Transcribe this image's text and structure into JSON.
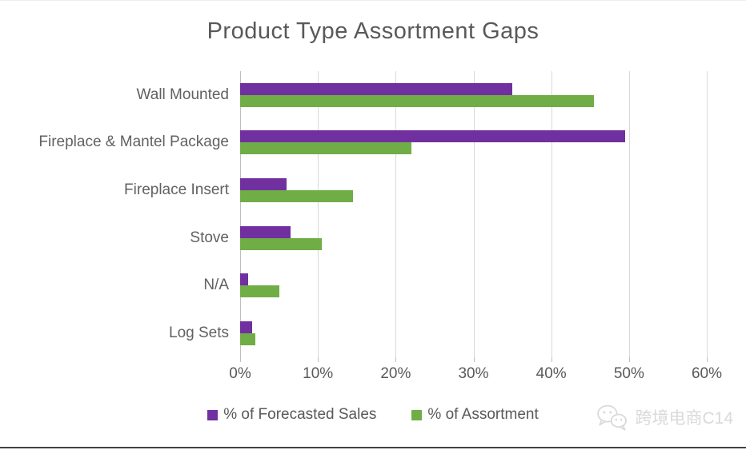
{
  "watermark": {
    "text": "跨境电商C14"
  },
  "chart_data": {
    "type": "bar",
    "orientation": "horizontal",
    "title": "Product Type Assortment Gaps",
    "categories": [
      "Wall Mounted",
      "Fireplace & Mantel Package",
      "Fireplace Insert",
      "Stove",
      "N/A",
      "Log Sets"
    ],
    "series": [
      {
        "name": "% of Forecasted Sales",
        "color": "#7030A0",
        "values": [
          35,
          49.5,
          6,
          6.5,
          1,
          1.5
        ]
      },
      {
        "name": "% of Assortment",
        "color": "#70AD47",
        "values": [
          45.5,
          22,
          14.5,
          10.5,
          5,
          2
        ]
      }
    ],
    "xlim": [
      0,
      60
    ],
    "x_ticks": [
      "0%",
      "10%",
      "20%",
      "30%",
      "40%",
      "50%",
      "60%"
    ],
    "x_tick_values": [
      0,
      10,
      20,
      30,
      40,
      50,
      60
    ],
    "grid": true,
    "legend_position": "bottom",
    "colors": {
      "gridline": "#d9d9d9",
      "axis_line": "#bfbfbf",
      "text": "#595959",
      "title": "#595959"
    }
  }
}
